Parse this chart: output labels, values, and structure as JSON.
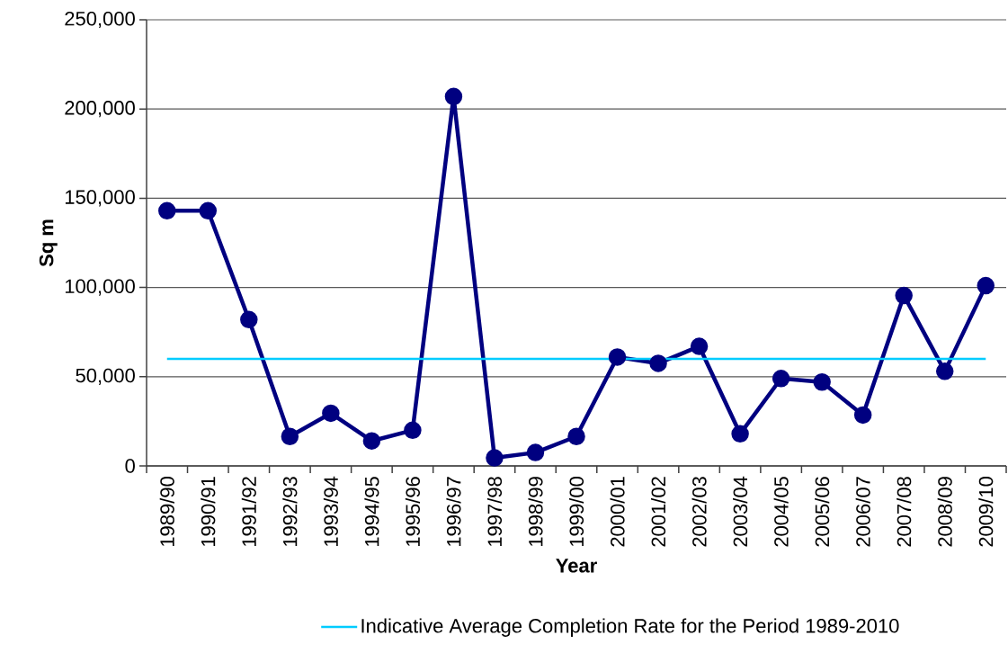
{
  "chart_data": {
    "type": "line",
    "xlabel": "Year",
    "ylabel": "Sq m",
    "categories": [
      "1989/90",
      "1990/91",
      "1991/92",
      "1992/93",
      "1993/94",
      "1994/95",
      "1995/96",
      "1996/97",
      "1997/98",
      "1998/99",
      "1999/00",
      "2000/01",
      "2001/02",
      "2002/03",
      "2003/04",
      "2004/05",
      "2005/06",
      "2006/07",
      "2007/08",
      "2008/09",
      "2009/10"
    ],
    "series": [
      {
        "color": "#000080",
        "values": [
          143000,
          143000,
          82000,
          16500,
          29500,
          14000,
          20000,
          207000,
          4500,
          7500,
          16500,
          61000,
          57500,
          67000,
          18000,
          49000,
          47000,
          28500,
          95500,
          53000,
          101000
        ]
      }
    ],
    "ref_lines": [
      {
        "axis": "y",
        "value": 60000,
        "label": "Indicative Average Completion Rate for the Period 1989-2010",
        "color": "#00ccff"
      }
    ],
    "ylim": [
      0,
      250000
    ],
    "yticks": [
      0,
      {
        "value": 50000,
        "label": "50,000"
      },
      {
        "value": 100000,
        "label": "100,000"
      },
      {
        "value": 150000,
        "label": "150,000"
      },
      {
        "value": 200000,
        "label": "200,000"
      },
      {
        "value": 250000,
        "label": "250,000"
      }
    ],
    "grid": "y",
    "legend": "bottom",
    "marker": "circle",
    "line_style": "solid"
  }
}
